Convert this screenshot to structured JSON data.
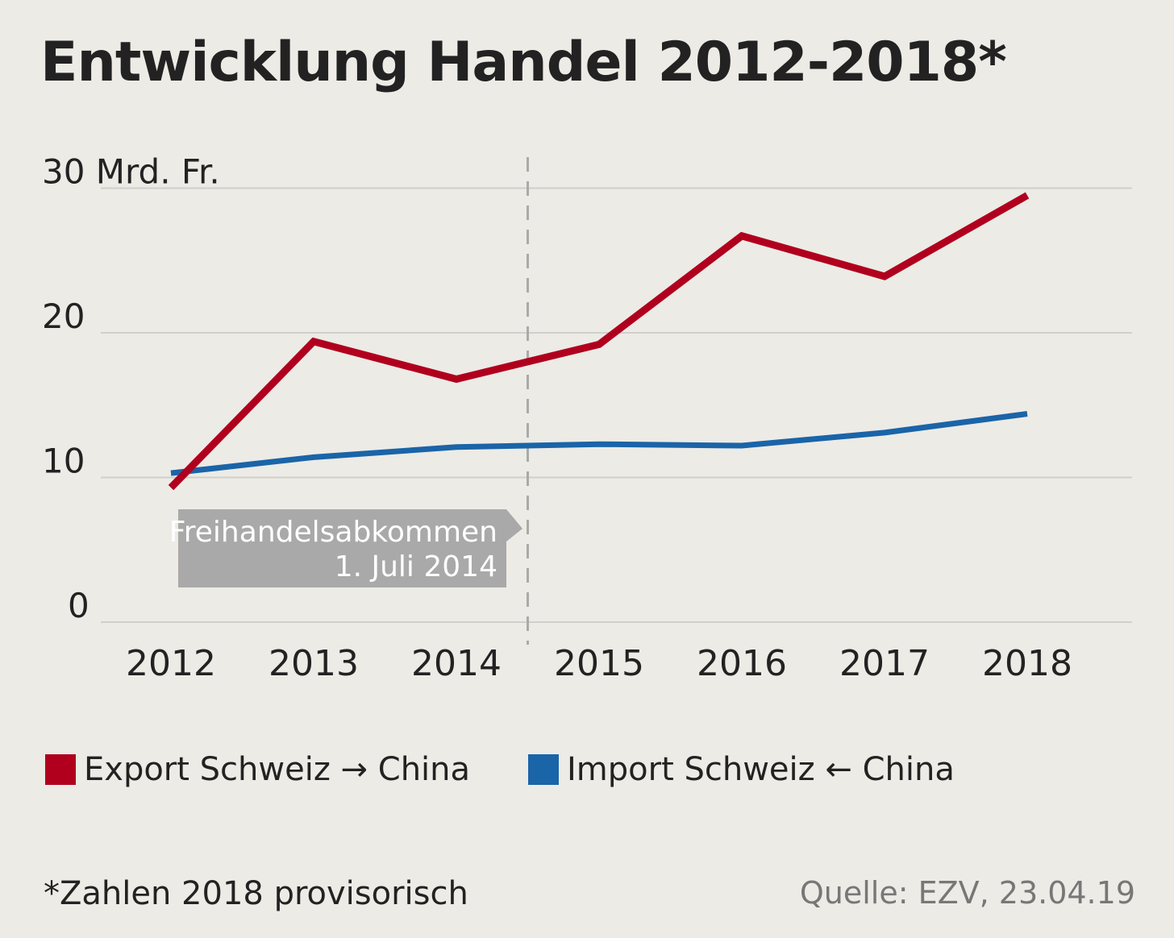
{
  "chart_data": {
    "type": "line",
    "title": "Entwicklung Handel 2012-2018*",
    "x": [
      2012,
      2013,
      2014,
      2015,
      2016,
      2017,
      2018
    ],
    "y_unit_label": "30 Mrd. Fr.",
    "yticks": [
      0,
      10,
      20,
      30
    ],
    "ytick_labels": [
      "0",
      "10",
      "20",
      "30 Mrd. Fr."
    ],
    "ylim": [
      0,
      30
    ],
    "grid": "horizontal",
    "legend_placement": "bottom",
    "series": [
      {
        "name": "Export Schweiz → China",
        "color": "#b0001e",
        "values": [
          9.3,
          19.4,
          16.8,
          19.2,
          26.7,
          23.9,
          29.5
        ]
      },
      {
        "name": "Import Schweiz ← China",
        "color": "#1a64a8",
        "values": [
          10.3,
          11.4,
          12.1,
          12.3,
          12.2,
          13.1,
          14.4
        ]
      }
    ],
    "annotation": {
      "x": 2014.5,
      "lines": [
        "Freihandelsabkommen",
        "1. Juli 2014"
      ],
      "box_color": "#aaa9a9"
    },
    "footnote": "*Zahlen 2018 provisorisch",
    "source": "Quelle: EZV, 23.04.19"
  }
}
